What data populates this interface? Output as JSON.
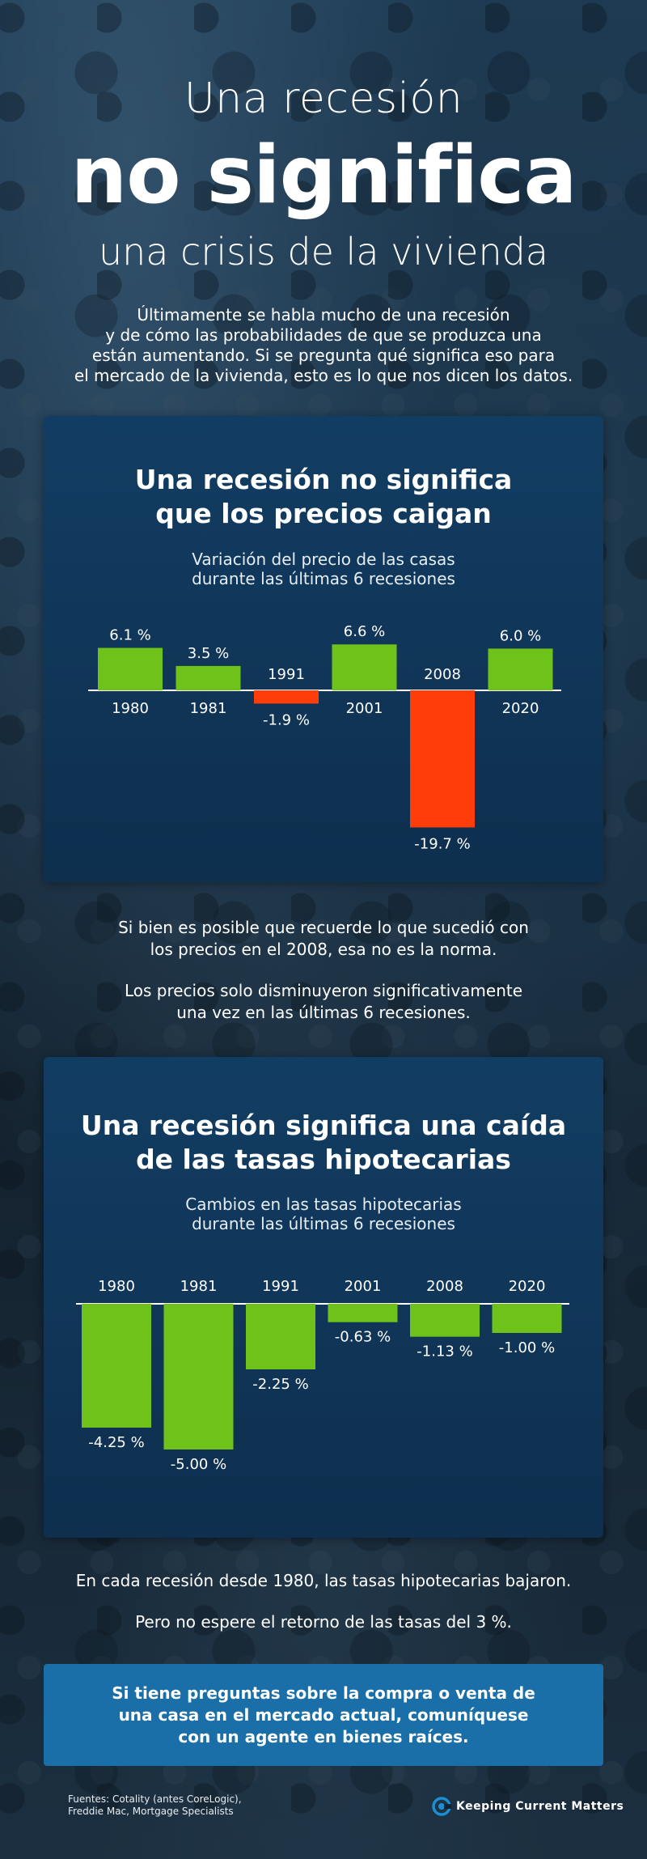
{
  "hero": {
    "line1": "Una recesión",
    "line2": "no significa",
    "line3": "una crisis de la vivienda"
  },
  "intro": {
    "lines": [
      "Últimamente se habla mucho de una recesión",
      "y de cómo las probabilidades de que se produzca una",
      "están aumentando. Si se pregunta qué significa eso para",
      "el mercado de la vivienda, esto es lo que nos dicen los datos."
    ]
  },
  "chart_data": [
    {
      "type": "bar",
      "title": "Una recesión no significa que los precios caigan",
      "title_lines": [
        "Una recesión no significa",
        "que los precios caigan"
      ],
      "subtitle_lines": [
        "Variación del precio de las casas",
        "durante las últimas 6 recesiones"
      ],
      "categories": [
        "1980",
        "1981",
        "1991",
        "2001",
        "2008",
        "2020"
      ],
      "values": [
        6.1,
        3.5,
        -1.9,
        6.6,
        -19.7,
        6.0
      ],
      "data_labels": [
        "6.1 %",
        "3.5 %",
        "-1.9 %",
        "6.6 %",
        "-19.7 %",
        "6.0 %"
      ],
      "colors": {
        "positive": "#6fc21a",
        "negative": "#ff3d0a",
        "axis": "#ffffff"
      },
      "ylim": [
        -19.7,
        6.6
      ],
      "grid": false
    },
    {
      "type": "bar",
      "title": "Una recesión significa una caída de las tasas hipotecarias",
      "title_lines": [
        "Una recesión significa una caída",
        "de las tasas hipotecarias"
      ],
      "subtitle_lines": [
        "Cambios en las tasas hipotecarias",
        "durante las últimas 6 recesiones"
      ],
      "categories": [
        "1980",
        "1981",
        "1991",
        "2001",
        "2008",
        "2020"
      ],
      "values": [
        -4.25,
        -5.0,
        -2.25,
        -0.63,
        -1.13,
        -1.0
      ],
      "data_labels": [
        "-4.25 %",
        "-5.00 %",
        "-2.25 %",
        "-0.63 %",
        "-1.13 %",
        "-1.00 %"
      ],
      "colors": {
        "bar": "#6fc21a",
        "axis": "#ffffff"
      },
      "ylim": [
        -5.0,
        0
      ],
      "grid": false
    }
  ],
  "mid1": {
    "lines": [
      "Si bien es posible que recuerde lo que sucedió con",
      "los precios en el 2008, esa no es la norma."
    ]
  },
  "mid2": {
    "lines": [
      "Los precios solo disminuyeron significativamente",
      "una vez en las últimas 6 recesiones."
    ]
  },
  "mid3": "En cada recesión desde 1980, las tasas hipotecarias bajaron.",
  "mid4": "Pero no espere el retorno de las tasas del 3 %.",
  "cta": {
    "lines": [
      "Si tiene preguntas sobre la compra o venta de",
      "una casa en el mercado actual, comuníquese",
      "con un agente en bienes raíces."
    ],
    "background": "#1a6fa8"
  },
  "sources": {
    "lines": [
      "Fuentes: Cotality (antes CoreLogic),",
      "Freddie Mac, Mortgage Specialists"
    ]
  },
  "brand": {
    "name": "Keeping Current Matters",
    "icon": "kcm-logo-icon",
    "color": "#1a8fd6"
  }
}
